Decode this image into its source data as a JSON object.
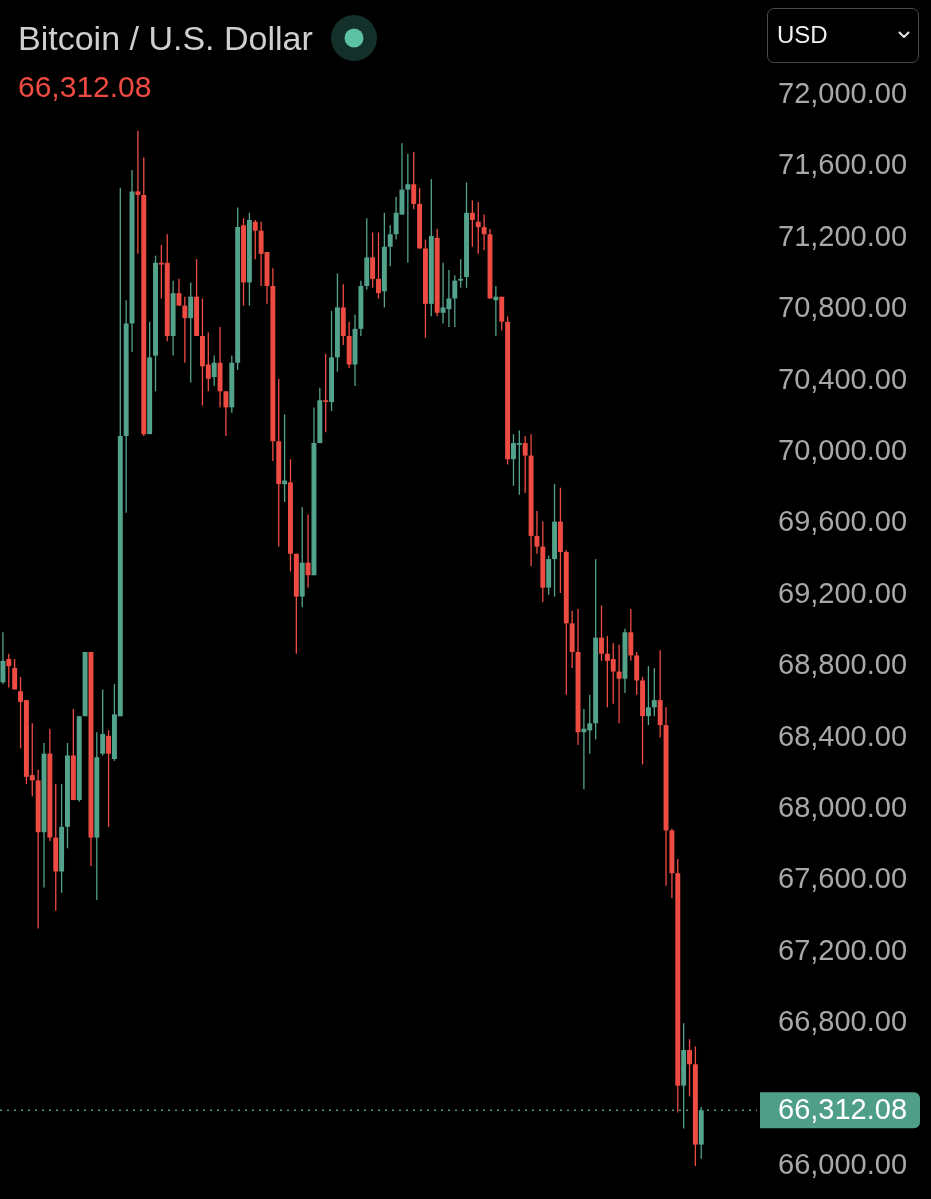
{
  "chart_data": {
    "type": "candlestick",
    "title": "Bitcoin / U.S. Dollar",
    "subtitle": "66,312.08",
    "annotations": [
      "USD"
    ],
    "categories": [
      null,
      null,
      null,
      null,
      null,
      null,
      null,
      null,
      null,
      null,
      null,
      null,
      null,
      null,
      null,
      null,
      null,
      null,
      null,
      null,
      null,
      null,
      null,
      null,
      null,
      null,
      null,
      null,
      null,
      null,
      null,
      null,
      null,
      null,
      null,
      null,
      null,
      null,
      null,
      null,
      null,
      null,
      null,
      null,
      null,
      null,
      null,
      null,
      null,
      null,
      null,
      null,
      null,
      null,
      null,
      null,
      null,
      null,
      null,
      null,
      null,
      null,
      null,
      null,
      null,
      null,
      null,
      null,
      null,
      null,
      null,
      null,
      null,
      null,
      null,
      null,
      null,
      null,
      null,
      null,
      null,
      null,
      null,
      null,
      null,
      null,
      null,
      null,
      null,
      null,
      null,
      null,
      null,
      null,
      null,
      null,
      null,
      null,
      null,
      null,
      null,
      null,
      null,
      null,
      null,
      null,
      null,
      null,
      null,
      null,
      null,
      null,
      null,
      null,
      null,
      null,
      null,
      null,
      null,
      null,
      null,
      null,
      null,
      null,
      null,
      null,
      null,
      null,
      null
    ],
    "ohlc": [
      [
        68710,
        68990,
        68700,
        68830
      ],
      [
        68840,
        68870,
        68680,
        68800
      ],
      [
        68790,
        68840,
        68670,
        68670
      ],
      [
        68660,
        68740,
        68340,
        68600
      ],
      [
        68610,
        68610,
        68140,
        68180
      ],
      [
        68190,
        68480,
        68070,
        68160
      ],
      [
        68160,
        68220,
        67330,
        67870
      ],
      [
        67870,
        68370,
        67560,
        68310
      ],
      [
        68310,
        68450,
        67820,
        67840
      ],
      [
        67840,
        68140,
        67430,
        67650
      ],
      [
        67650,
        68140,
        67530,
        67900
      ],
      [
        67900,
        68370,
        67780,
        68300
      ],
      [
        68300,
        68560,
        68050,
        68050
      ],
      [
        68050,
        68520,
        68040,
        68520
      ],
      [
        68520,
        68880,
        68520,
        68880
      ],
      [
        68880,
        68880,
        67680,
        67840
      ],
      [
        67840,
        68430,
        67490,
        68290
      ],
      [
        68310,
        68670,
        68300,
        68420
      ],
      [
        68410,
        68440,
        67900,
        68310
      ],
      [
        68280,
        68700,
        68270,
        68530
      ],
      [
        68520,
        71480,
        68520,
        70090
      ],
      [
        70090,
        70850,
        69660,
        70720
      ],
      [
        70720,
        71580,
        70560,
        71460
      ],
      [
        71460,
        71800,
        71110,
        71440
      ],
      [
        71440,
        71650,
        70090,
        70100
      ],
      [
        70100,
        70730,
        70100,
        70530
      ],
      [
        70540,
        71100,
        70340,
        71060
      ],
      [
        71060,
        71160,
        70860,
        71050
      ],
      [
        71060,
        71220,
        70620,
        70650
      ],
      [
        70650,
        70960,
        70540,
        70890
      ],
      [
        70890,
        70970,
        70820,
        70820
      ],
      [
        70820,
        70870,
        70500,
        70750
      ],
      [
        70750,
        70950,
        70390,
        70870
      ],
      [
        70870,
        71080,
        70650,
        70650
      ],
      [
        70650,
        70860,
        70260,
        70480
      ],
      [
        70490,
        70670,
        70340,
        70410
      ],
      [
        70420,
        70540,
        70370,
        70500
      ],
      [
        70500,
        70700,
        70250,
        70340
      ],
      [
        70340,
        70340,
        70090,
        70250
      ],
      [
        70250,
        70540,
        70220,
        70500
      ],
      [
        70500,
        71370,
        70460,
        71260
      ],
      [
        71270,
        71310,
        70820,
        70950
      ],
      [
        70950,
        71340,
        70820,
        71300
      ],
      [
        71290,
        71300,
        71080,
        71240
      ],
      [
        71240,
        71290,
        70930,
        71110
      ],
      [
        71120,
        71120,
        70830,
        70930
      ],
      [
        70930,
        71030,
        69950,
        70060
      ],
      [
        70060,
        70410,
        69470,
        69820
      ],
      [
        69820,
        70210,
        69720,
        69840
      ],
      [
        69830,
        69960,
        69330,
        69430
      ],
      [
        69430,
        69430,
        68870,
        69190
      ],
      [
        69190,
        69690,
        69130,
        69380
      ],
      [
        69380,
        69650,
        69240,
        69310
      ],
      [
        69310,
        70250,
        69310,
        70050
      ],
      [
        70050,
        70360,
        70050,
        70290
      ],
      [
        70290,
        70550,
        70110,
        70280
      ],
      [
        70280,
        70790,
        70230,
        70530
      ],
      [
        70530,
        71000,
        70450,
        70810
      ],
      [
        70810,
        70940,
        70600,
        70650
      ],
      [
        70650,
        70730,
        70470,
        70490
      ],
      [
        70490,
        70770,
        70370,
        70690
      ],
      [
        70690,
        70960,
        70650,
        70930
      ],
      [
        70930,
        71310,
        70910,
        71090
      ],
      [
        71090,
        71230,
        70920,
        70970
      ],
      [
        70970,
        71230,
        70860,
        70890
      ],
      [
        70900,
        71340,
        70810,
        71150
      ],
      [
        71150,
        71270,
        71040,
        71220
      ],
      [
        71220,
        71430,
        71190,
        71340
      ],
      [
        71330,
        71730,
        71330,
        71470
      ],
      [
        71470,
        71670,
        71060,
        71500
      ],
      [
        71500,
        71680,
        71360,
        71390
      ],
      [
        71390,
        71480,
        71140,
        71140
      ],
      [
        71140,
        71190,
        70640,
        70830
      ],
      [
        70830,
        71530,
        70760,
        71210
      ],
      [
        71200,
        71250,
        70760,
        70780
      ],
      [
        70780,
        71060,
        70720,
        70810
      ],
      [
        70800,
        71020,
        70700,
        70860
      ],
      [
        70860,
        70990,
        70700,
        70960
      ],
      [
        70960,
        71080,
        70920,
        70970
      ],
      [
        70980,
        71510,
        70920,
        71340
      ],
      [
        71340,
        71410,
        71150,
        71300
      ],
      [
        71290,
        71400,
        71110,
        71260
      ],
      [
        71260,
        71330,
        71130,
        71220
      ],
      [
        71220,
        71250,
        70860,
        70860
      ],
      [
        70850,
        70930,
        70650,
        70870
      ],
      [
        70870,
        70870,
        70680,
        70730
      ],
      [
        70730,
        70760,
        69930,
        69960
      ],
      [
        69960,
        70100,
        69810,
        70050
      ],
      [
        70040,
        70120,
        69760,
        70050
      ],
      [
        70050,
        70090,
        69770,
        69980
      ],
      [
        69980,
        70100,
        69360,
        69530
      ],
      [
        69530,
        69670,
        69430,
        69470
      ],
      [
        69470,
        69610,
        69160,
        69240
      ],
      [
        69240,
        69420,
        69200,
        69400
      ],
      [
        69400,
        69820,
        69190,
        69610
      ],
      [
        69610,
        69800,
        69210,
        69440
      ],
      [
        69440,
        69450,
        68640,
        69040
      ],
      [
        69040,
        69110,
        68790,
        68880
      ],
      [
        68880,
        69120,
        68360,
        68430
      ],
      [
        68430,
        68560,
        68110,
        68450
      ],
      [
        68440,
        68640,
        68310,
        68480
      ],
      [
        68480,
        69400,
        68390,
        68960
      ],
      [
        68960,
        69140,
        68830,
        68870
      ],
      [
        68870,
        68970,
        68570,
        68830
      ],
      [
        68840,
        68930,
        68590,
        68770
      ],
      [
        68770,
        68920,
        68480,
        68730
      ],
      [
        68730,
        69010,
        68650,
        68990
      ],
      [
        68990,
        69120,
        68830,
        68860
      ],
      [
        68860,
        68880,
        68640,
        68720
      ],
      [
        68720,
        68740,
        68250,
        68520
      ],
      [
        68520,
        68800,
        68470,
        68570
      ],
      [
        68570,
        68790,
        68520,
        68610
      ],
      [
        68610,
        68890,
        68400,
        68470
      ],
      [
        68470,
        68570,
        67570,
        67880
      ],
      [
        67880,
        67890,
        67500,
        67640
      ],
      [
        67640,
        67720,
        66300,
        66450
      ],
      [
        66450,
        66800,
        66210,
        66650
      ],
      [
        66650,
        66710,
        66390,
        66570
      ],
      [
        66570,
        66670,
        66000,
        66120
      ],
      [
        66120,
        66330,
        66040,
        66312.08
      ],
      null,
      null,
      null,
      null,
      null,
      null,
      null,
      null,
      null
    ],
    "colors": [
      "#53a38c",
      "#ee4c43",
      "#ee4c43",
      "#ee4c43",
      "#ee4c43",
      "#ee4c43",
      "#ee4c43",
      "#53a38c",
      "#ee4c43",
      "#ee4c43",
      "#53a38c",
      "#53a38c",
      "#ee4c43",
      "#53a38c",
      "#53a38c",
      "#ee4c43",
      "#53a38c",
      "#53a38c",
      "#ee4c43",
      "#53a38c",
      "#53a38c",
      "#53a38c",
      "#53a38c",
      "#ee4c43",
      "#ee4c43",
      "#53a38c",
      "#53a38c",
      "#ee4c43",
      "#ee4c43",
      "#53a38c",
      "#ee4c43",
      "#ee4c43",
      "#53a38c",
      "#ee4c43",
      "#ee4c43",
      "#ee4c43",
      "#53a38c",
      "#ee4c43",
      "#ee4c43",
      "#53a38c",
      "#53a38c",
      "#ee4c43",
      "#53a38c",
      "#ee4c43",
      "#ee4c43",
      "#ee4c43",
      "#ee4c43",
      "#ee4c43",
      "#53a38c",
      "#ee4c43",
      "#ee4c43",
      "#53a38c",
      "#ee4c43",
      "#53a38c",
      "#53a38c",
      "#ee4c43",
      "#53a38c",
      "#53a38c",
      "#ee4c43",
      "#ee4c43",
      "#53a38c",
      "#53a38c",
      "#53a38c",
      "#ee4c43",
      "#ee4c43",
      "#53a38c",
      "#53a38c",
      "#53a38c",
      "#53a38c",
      "#53a38c",
      "#ee4c43",
      "#ee4c43",
      "#ee4c43",
      "#53a38c",
      "#ee4c43",
      "#53a38c",
      "#53a38c",
      "#53a38c",
      "#53a38c",
      "#53a38c",
      "#ee4c43",
      "#ee4c43",
      "#ee4c43",
      "#ee4c43",
      "#53a38c",
      "#ee4c43",
      "#ee4c43",
      "#53a38c",
      "#53a38c",
      "#ee4c43",
      "#ee4c43",
      "#ee4c43",
      "#ee4c43",
      "#53a38c",
      "#53a38c",
      "#ee4c43",
      "#ee4c43",
      "#ee4c43",
      "#ee4c43",
      "#53a38c",
      "#53a38c",
      "#53a38c",
      "#ee4c43",
      "#ee4c43",
      "#ee4c43",
      "#ee4c43",
      "#53a38c",
      "#ee4c43",
      "#ee4c43",
      "#ee4c43",
      "#53a38c",
      "#53a38c",
      "#ee4c43",
      "#ee4c43",
      "#ee4c43",
      "#ee4c43",
      "#53a38c",
      "#ee4c43",
      "#ee4c43",
      "#53a38c",
      null,
      null,
      null,
      null,
      null,
      null,
      null,
      null,
      null
    ],
    "ylim": [
      66000,
      72000
    ],
    "yticks": [
      {
        "value": 72000,
        "label": "72,000.00"
      },
      {
        "value": 71600,
        "label": "71,600.00"
      },
      {
        "value": 71200,
        "label": "71,200.00"
      },
      {
        "value": 70800,
        "label": "70,800.00"
      },
      {
        "value": 70400,
        "label": "70,400.00"
      },
      {
        "value": 70000,
        "label": "70,000.00"
      },
      {
        "value": 69600,
        "label": "69,600.00"
      },
      {
        "value": 69200,
        "label": "69,200.00"
      },
      {
        "value": 68800,
        "label": "68,800.00"
      },
      {
        "value": 68400,
        "label": "68,400.00"
      },
      {
        "value": 68000,
        "label": "68,000.00"
      },
      {
        "value": 67600,
        "label": "67,600.00"
      },
      {
        "value": 67200,
        "label": "67,200.00"
      },
      {
        "value": 66800,
        "label": "66,800.00"
      },
      {
        "value": 66000,
        "label": "66,000.00"
      }
    ],
    "tick_labels": "y",
    "ref_lines": [
      {
        "axis": "y",
        "value": 66312.08,
        "label": "66,312.08",
        "color": "#4f9f88",
        "line_style": "dotted"
      }
    ]
  }
}
